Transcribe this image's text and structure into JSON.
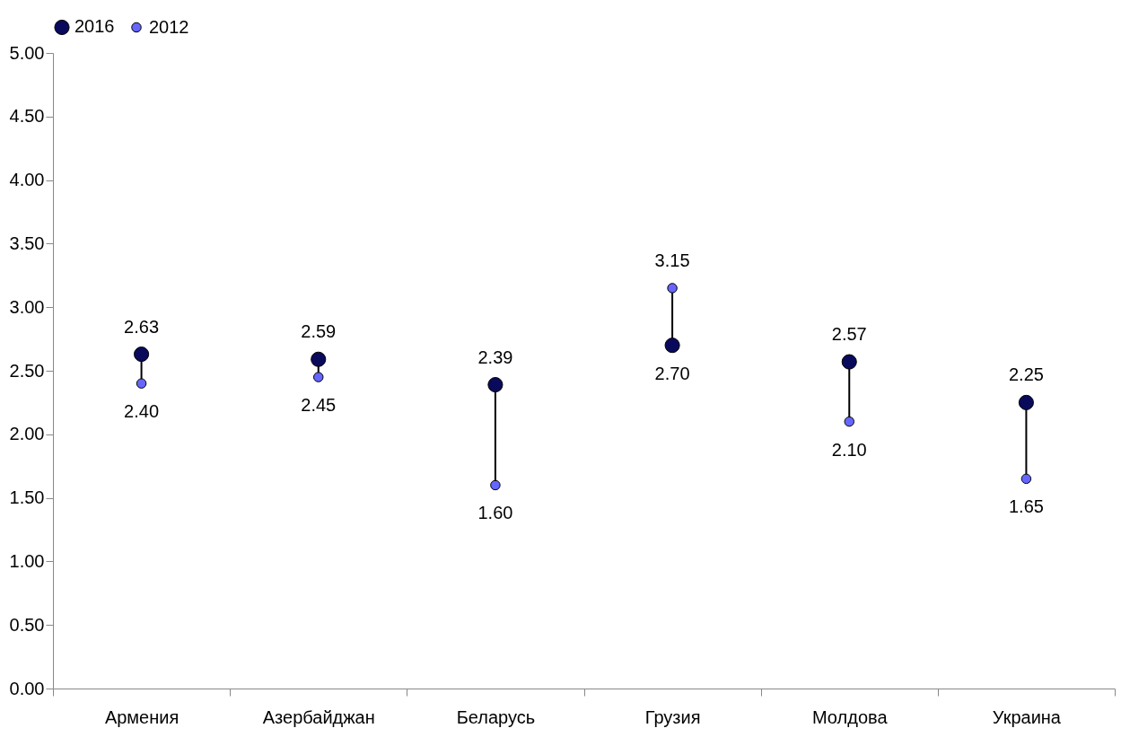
{
  "chart_data": {
    "type": "scatter",
    "categories": [
      "Армения",
      "Азербайджан",
      "Беларусь",
      "Грузия",
      "Молдова",
      "Украина"
    ],
    "series": [
      {
        "name": "2016",
        "color": "#0a0a5c",
        "values": [
          2.63,
          2.59,
          2.39,
          2.7,
          2.57,
          2.25
        ],
        "value_labels": [
          "2.63",
          "2.59",
          "2.39",
          "2.70",
          "2.57",
          "2.25"
        ]
      },
      {
        "name": "2012",
        "color": "#6666ff",
        "values": [
          2.4,
          2.45,
          1.6,
          3.15,
          2.1,
          1.65
        ],
        "value_labels": [
          "2.40",
          "2.45",
          "1.60",
          "3.15",
          "2.10",
          "1.65"
        ]
      }
    ],
    "ylim": [
      0,
      5
    ],
    "yticks": [
      {
        "value": 0,
        "label": "0.00"
      },
      {
        "value": 0.5,
        "label": "0.50"
      },
      {
        "value": 1,
        "label": "1.00"
      },
      {
        "value": 1.5,
        "label": "1.50"
      },
      {
        "value": 2,
        "label": "2.00"
      },
      {
        "value": 2.5,
        "label": "2.50"
      },
      {
        "value": 3,
        "label": "3.00"
      },
      {
        "value": 3.5,
        "label": "3.50"
      },
      {
        "value": 4,
        "label": "4.00"
      },
      {
        "value": 4.5,
        "label": "4.50"
      },
      {
        "value": 5,
        "label": "5.00"
      }
    ],
    "legend": "top",
    "marker": "circle",
    "grid": false
  }
}
